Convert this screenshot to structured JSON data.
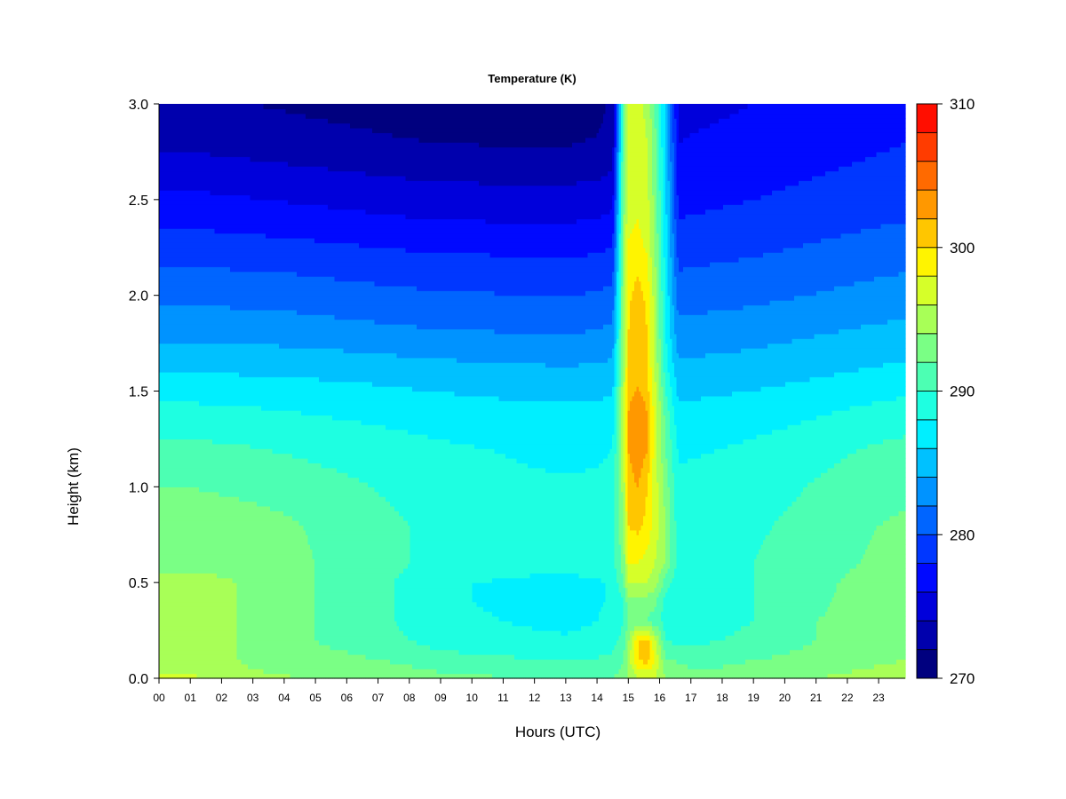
{
  "chart_data": {
    "type": "heatmap",
    "title": "Temperature (K)",
    "xlabel": "Hours (UTC)",
    "ylabel": "Height (km)",
    "xlim": [
      0,
      23.85
    ],
    "ylim": [
      0.0,
      3.0
    ],
    "x_ticks": [
      "00",
      "01",
      "02",
      "03",
      "04",
      "05",
      "06",
      "07",
      "08",
      "09",
      "10",
      "11",
      "12",
      "13",
      "14",
      "15",
      "16",
      "17",
      "18",
      "19",
      "20",
      "21",
      "22",
      "23"
    ],
    "y_ticks": [
      "0.0",
      "0.5",
      "1.0",
      "1.5",
      "2.0",
      "2.5",
      "3.0"
    ],
    "colorbar": {
      "min": 270,
      "max": 310,
      "step": 2,
      "tick_values": [
        270,
        280,
        290,
        300,
        310
      ],
      "tick_labels": [
        "270",
        "280",
        "290",
        "300",
        "310"
      ],
      "colors": [
        "#00007F",
        "#0000AD",
        "#0000DB",
        "#0009FF",
        "#0037FF",
        "#0065FF",
        "#0093FF",
        "#00C1FF",
        "#00EFFF",
        "#1EFFE1",
        "#4CFFB3",
        "#7AFF85",
        "#A8FF57",
        "#D6FF29",
        "#FFF400",
        "#FFC600",
        "#FF9800",
        "#FF6A00",
        "#FF3C00",
        "#FF0E00",
        "#DF0000",
        "#B10000",
        "#830000"
      ]
    },
    "grid_x_hours": [
      0,
      1,
      2,
      3,
      4,
      5,
      6,
      7,
      8,
      9,
      10,
      11,
      12,
      13,
      14,
      14.5,
      14.85,
      15,
      15.3,
      15.6,
      15.85,
      16.2,
      16.6,
      17,
      18,
      19,
      20,
      21,
      22,
      23,
      23.85
    ],
    "grid_y_km": [
      0.0,
      0.1,
      0.2,
      0.3,
      0.4,
      0.5,
      0.6,
      0.8,
      1.0,
      1.2,
      1.4,
      1.6,
      1.8,
      2.0,
      2.2,
      2.4,
      2.6,
      2.8,
      3.0
    ],
    "temperature_K": [
      [
        296.5,
        296.5,
        295,
        294.5,
        294.2,
        294,
        293.8,
        293.5,
        293,
        292.5,
        292.3,
        292.2,
        292.1,
        292,
        292,
        292,
        293,
        294,
        296,
        296,
        296,
        294,
        293,
        292.5,
        292.8,
        293,
        293.5,
        294,
        294.5,
        295,
        295.5
      ],
      [
        295,
        295,
        294.5,
        293.5,
        293,
        292.5,
        292.3,
        292,
        291.5,
        291,
        290.5,
        290.3,
        290.1,
        290,
        290.2,
        290.5,
        292,
        295,
        300,
        301,
        298,
        292,
        291.8,
        291.5,
        291.5,
        292,
        292.2,
        292.5,
        293,
        293.5,
        294
      ],
      [
        295,
        295,
        294.5,
        293.5,
        293,
        292,
        291.5,
        291,
        290,
        289,
        288.7,
        288.5,
        288.3,
        288.2,
        288.5,
        289,
        291,
        294,
        300,
        301,
        296,
        290,
        289.5,
        289.5,
        290,
        290.5,
        291.5,
        292,
        292.5,
        293,
        293.5
      ],
      [
        295,
        295,
        294.5,
        293.5,
        293,
        292,
        291.5,
        290.5,
        289.5,
        288.5,
        288.2,
        288,
        287.8,
        287.6,
        288,
        288.5,
        290,
        292,
        292,
        292,
        291,
        289,
        288.5,
        289,
        289.5,
        290,
        291,
        292,
        292.5,
        293,
        293.5
      ],
      [
        295,
        295,
        294.5,
        293.5,
        293,
        292,
        291.5,
        290.5,
        289.5,
        288.5,
        288,
        287.8,
        287.6,
        287.5,
        287.8,
        288.2,
        290,
        293,
        293,
        293,
        292.5,
        289,
        288.5,
        288.8,
        289.2,
        290,
        290.8,
        291.5,
        292.5,
        293,
        293.5
      ],
      [
        295,
        295,
        294.5,
        293.5,
        293,
        292,
        291.5,
        290.5,
        289.5,
        288.5,
        288,
        287.8,
        287.6,
        287.5,
        287.8,
        288.2,
        292,
        296,
        296,
        296,
        295,
        291,
        288.8,
        289,
        289.5,
        290,
        290.8,
        291.5,
        292.2,
        292.8,
        293.2
      ],
      [
        293.2,
        293.2,
        293,
        292.8,
        292.5,
        292,
        291.5,
        290.8,
        290,
        289.5,
        289,
        288.8,
        288.6,
        288.5,
        288.8,
        289.2,
        293,
        298,
        298,
        297,
        296,
        294,
        289,
        289.2,
        289.5,
        290,
        290.5,
        291.2,
        291.8,
        292.3,
        292.6
      ],
      [
        293,
        293,
        292.8,
        292.6,
        292.3,
        291.8,
        291.3,
        290.6,
        290,
        289.4,
        289,
        288.8,
        288.6,
        288.5,
        288.6,
        289,
        294,
        300,
        300.5,
        299.5,
        297,
        294,
        288.8,
        289,
        289.3,
        289.7,
        290.2,
        290.8,
        291.5,
        292,
        292.3
      ],
      [
        292,
        292,
        291.8,
        291.6,
        291.3,
        290.8,
        290.4,
        289.9,
        289.4,
        289,
        288.7,
        288.5,
        288.3,
        288.2,
        288.3,
        288.6,
        295,
        301,
        302,
        300,
        297,
        293,
        288.4,
        288.5,
        288.8,
        289.2,
        289.6,
        290.2,
        290.8,
        291.3,
        291.6
      ],
      [
        290.5,
        290.5,
        290.3,
        290.1,
        289.8,
        289.5,
        289.2,
        288.9,
        288.6,
        288.3,
        288.1,
        287.9,
        287.7,
        287.6,
        287.7,
        288,
        296,
        302,
        304,
        302,
        297,
        292,
        287.7,
        287.8,
        288,
        288.4,
        288.8,
        289.3,
        289.8,
        290.3,
        290.6
      ],
      [
        288.5,
        288.5,
        288.4,
        288.2,
        288,
        287.8,
        287.6,
        287.4,
        287.2,
        287,
        286.8,
        286.6,
        286.5,
        286.4,
        286.5,
        286.8,
        296,
        302,
        303.5,
        302,
        297,
        291,
        286.4,
        286.5,
        286.7,
        287,
        287.3,
        287.7,
        288.1,
        288.5,
        288.8
      ],
      [
        286,
        286,
        285.9,
        285.8,
        285.7,
        285.6,
        285.5,
        285.3,
        285.1,
        284.9,
        284.7,
        284.6,
        284.5,
        284.4,
        284.5,
        284.8,
        295,
        300,
        301,
        300,
        296,
        289,
        284.6,
        284.7,
        284.9,
        285.1,
        285.4,
        285.7,
        286,
        286.3,
        286.5
      ],
      [
        283.5,
        283.5,
        283.4,
        283.3,
        283.2,
        283,
        282.8,
        282.6,
        282.4,
        282.3,
        282.2,
        282.1,
        282,
        282,
        282.2,
        282.6,
        294,
        300,
        301.5,
        300,
        295,
        288,
        282.8,
        282.9,
        283.1,
        283.3,
        283.6,
        283.9,
        284.2,
        284.5,
        284.7
      ],
      [
        281.5,
        281.5,
        281.4,
        281.3,
        281.2,
        281,
        280.8,
        280.6,
        280.4,
        280.3,
        280.2,
        280.1,
        280,
        280,
        280.2,
        280.6,
        294,
        299.5,
        301,
        299.5,
        295,
        287.5,
        281,
        281.1,
        281.3,
        281.5,
        281.8,
        282.1,
        282.4,
        282.7,
        282.9
      ],
      [
        279.5,
        279.5,
        279.4,
        279.3,
        279.2,
        279,
        278.8,
        278.6,
        278.4,
        278.3,
        278.2,
        278.1,
        278,
        278,
        278.2,
        278.6,
        294,
        298.5,
        299,
        298,
        294,
        287,
        279.5,
        279.6,
        279.8,
        280,
        280.3,
        280.6,
        280.9,
        281.2,
        281.4
      ],
      [
        277.5,
        277.5,
        277.3,
        277.1,
        276.9,
        276.7,
        276.5,
        276.3,
        276.1,
        276,
        275.9,
        275.8,
        275.8,
        275.8,
        276,
        276.5,
        293.5,
        297.5,
        298,
        297,
        293.5,
        286.5,
        278,
        278.1,
        278.3,
        278.5,
        278.8,
        279.1,
        279.4,
        279.7,
        279.9
      ],
      [
        275.5,
        275.5,
        275.3,
        275.1,
        274.9,
        274.7,
        274.5,
        274.3,
        274.1,
        274,
        273.9,
        273.8,
        273.8,
        273.8,
        274,
        274.5,
        293,
        297,
        297.5,
        296.5,
        293,
        286,
        277,
        277.1,
        277.3,
        277.5,
        277.8,
        278.1,
        278.4,
        278.7,
        279
      ],
      [
        273.5,
        273.5,
        273.3,
        273.1,
        272.9,
        272.7,
        272.5,
        272.3,
        272.1,
        272,
        271.9,
        271.8,
        271.8,
        271.8,
        272.2,
        273,
        292.5,
        296.5,
        297,
        296,
        292.5,
        285.5,
        276,
        276.1,
        276.3,
        276.5,
        276.8,
        277.1,
        277.4,
        277.7,
        278
      ],
      [
        272.5,
        272.5,
        272.2,
        272,
        271.8,
        271.6,
        271.4,
        271.2,
        271,
        270.9,
        270.8,
        270.7,
        270.7,
        270.7,
        271.2,
        272.5,
        292,
        296,
        296.5,
        295.5,
        292,
        285,
        275.5,
        275.6,
        275.8,
        276,
        276.3,
        276.6,
        276.9,
        277.2,
        277.5
      ]
    ]
  }
}
